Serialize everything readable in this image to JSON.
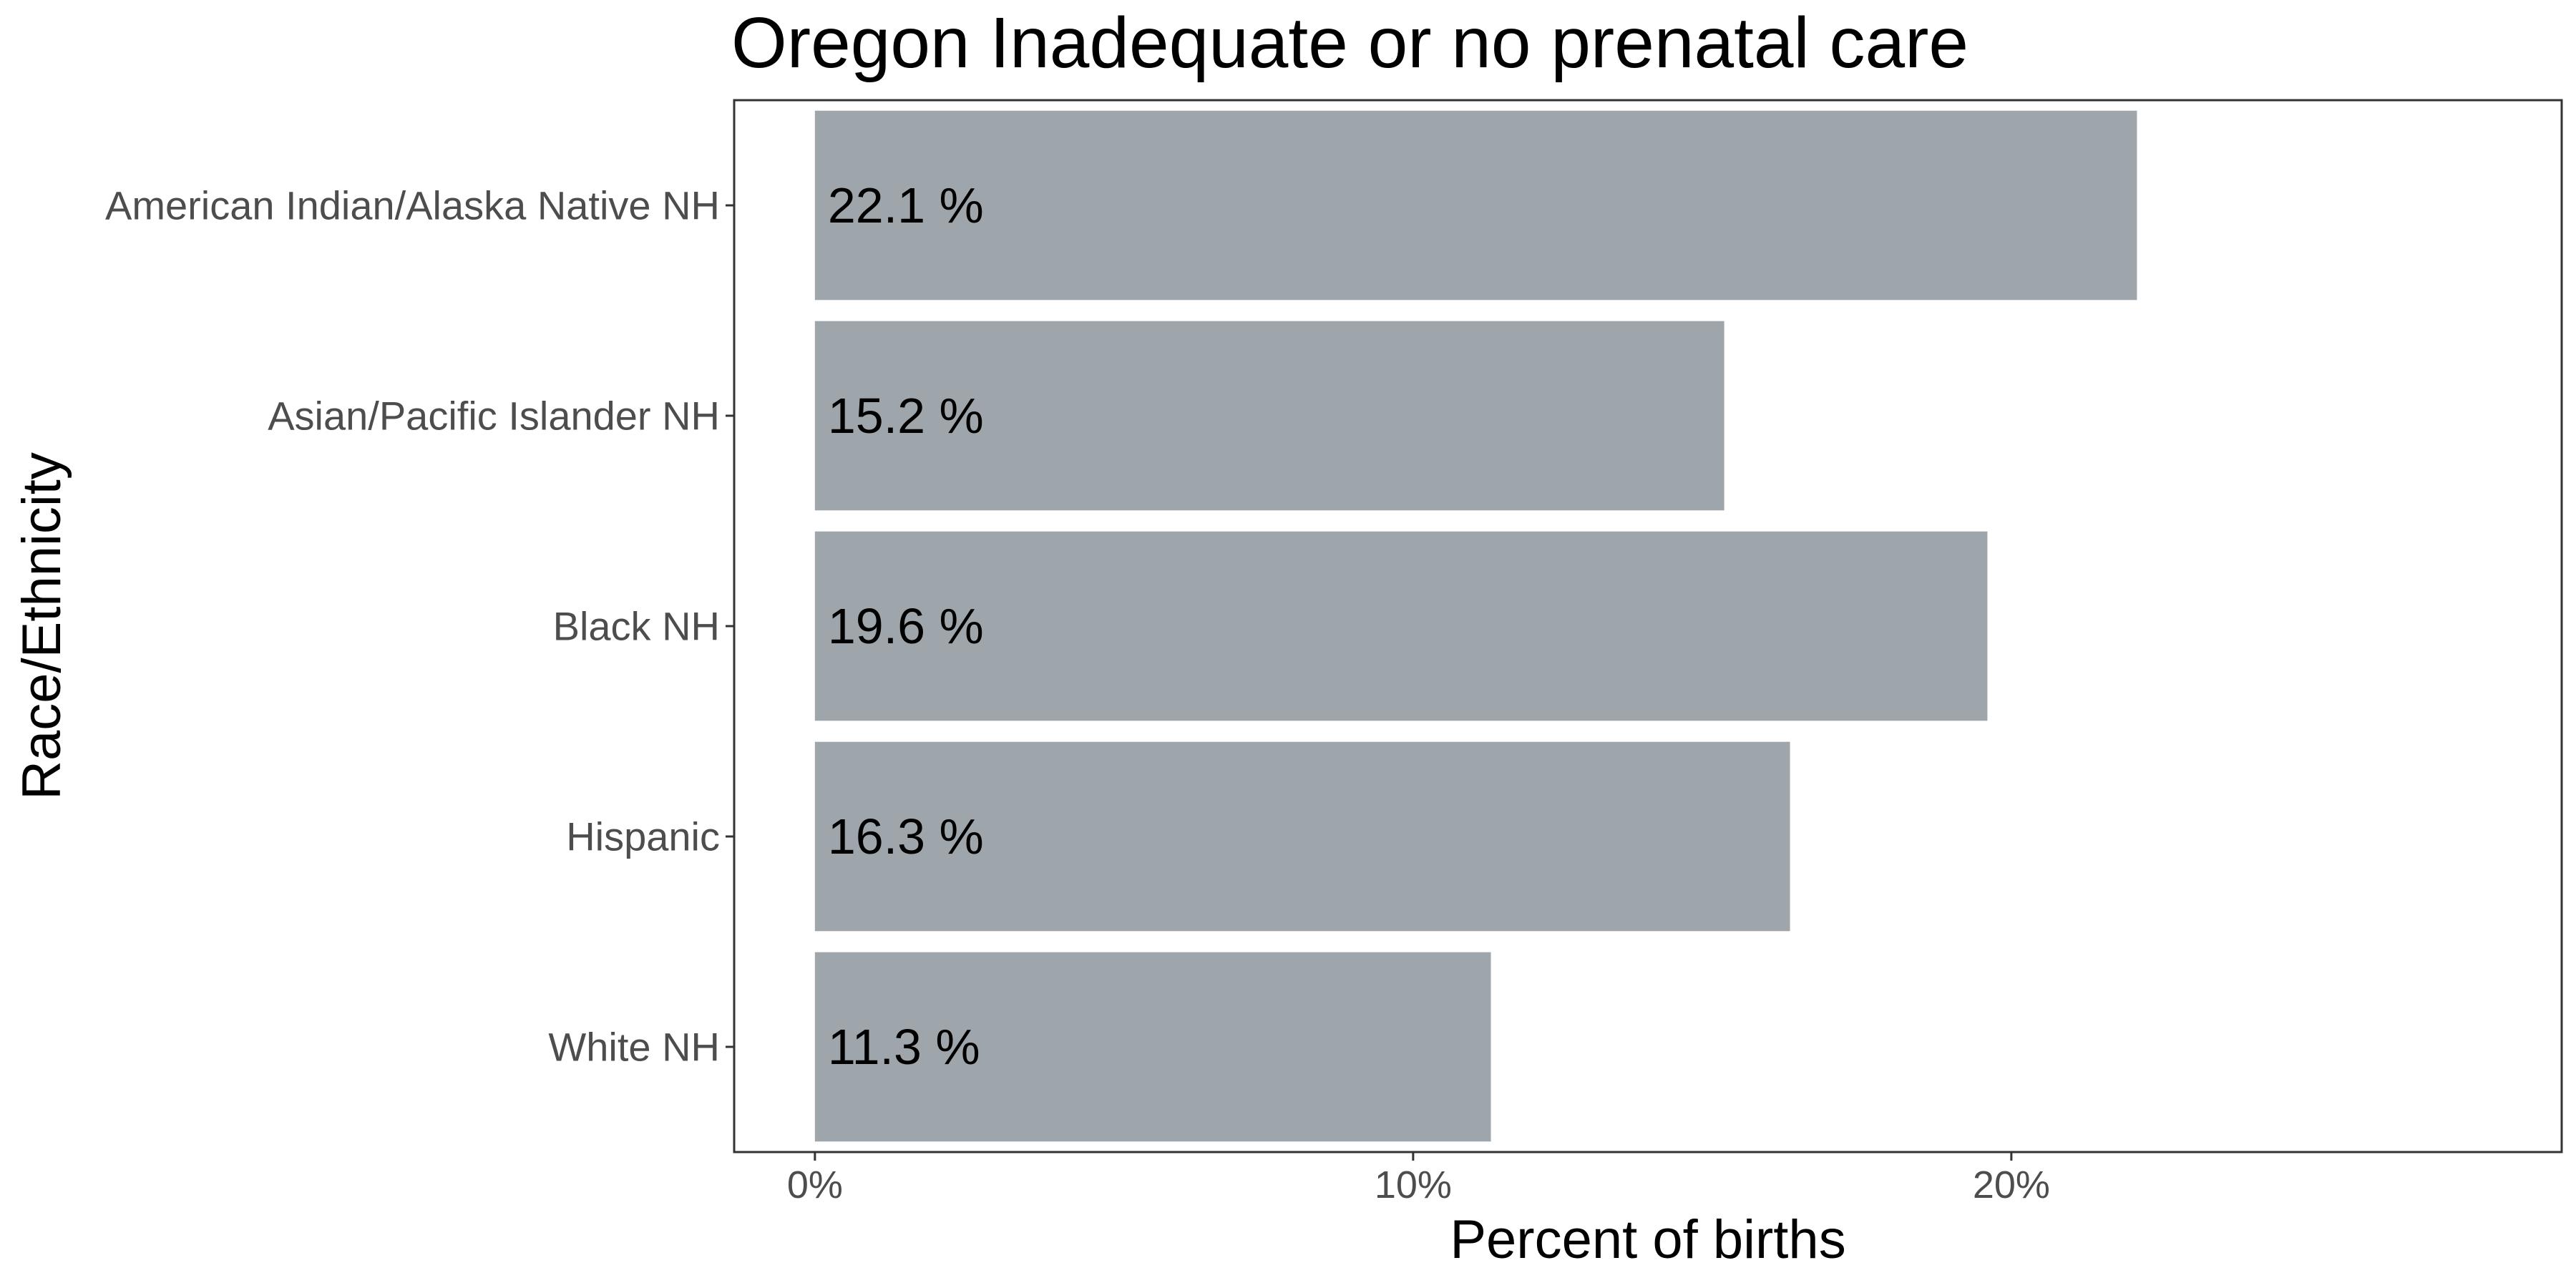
{
  "chart_data": {
    "type": "bar",
    "orientation": "horizontal",
    "title": "Oregon Inadequate or no prenatal care",
    "xlabel": "Percent of births",
    "ylabel": "Race/Ethnicity",
    "categories": [
      "American Indian/Alaska Native NH",
      "Asian/Pacific Islander NH",
      "Black NH",
      "Hispanic",
      "White NH"
    ],
    "values": [
      22.1,
      15.2,
      19.6,
      16.3,
      11.3
    ],
    "value_labels": [
      "22.1 %",
      "15.2 %",
      "19.6 %",
      "16.3 %",
      "11.3 %"
    ],
    "xlim": [
      -1.35,
      29.2
    ],
    "x_ticks": [
      0,
      10,
      20
    ],
    "x_tick_labels": [
      "0%",
      "10%",
      "20%"
    ],
    "grid": false,
    "legend": "none",
    "colors": {
      "bar": "#9ea6ab",
      "panel_border": "#333333",
      "axis_text": "#4d4d4d",
      "text": "#000000"
    }
  }
}
